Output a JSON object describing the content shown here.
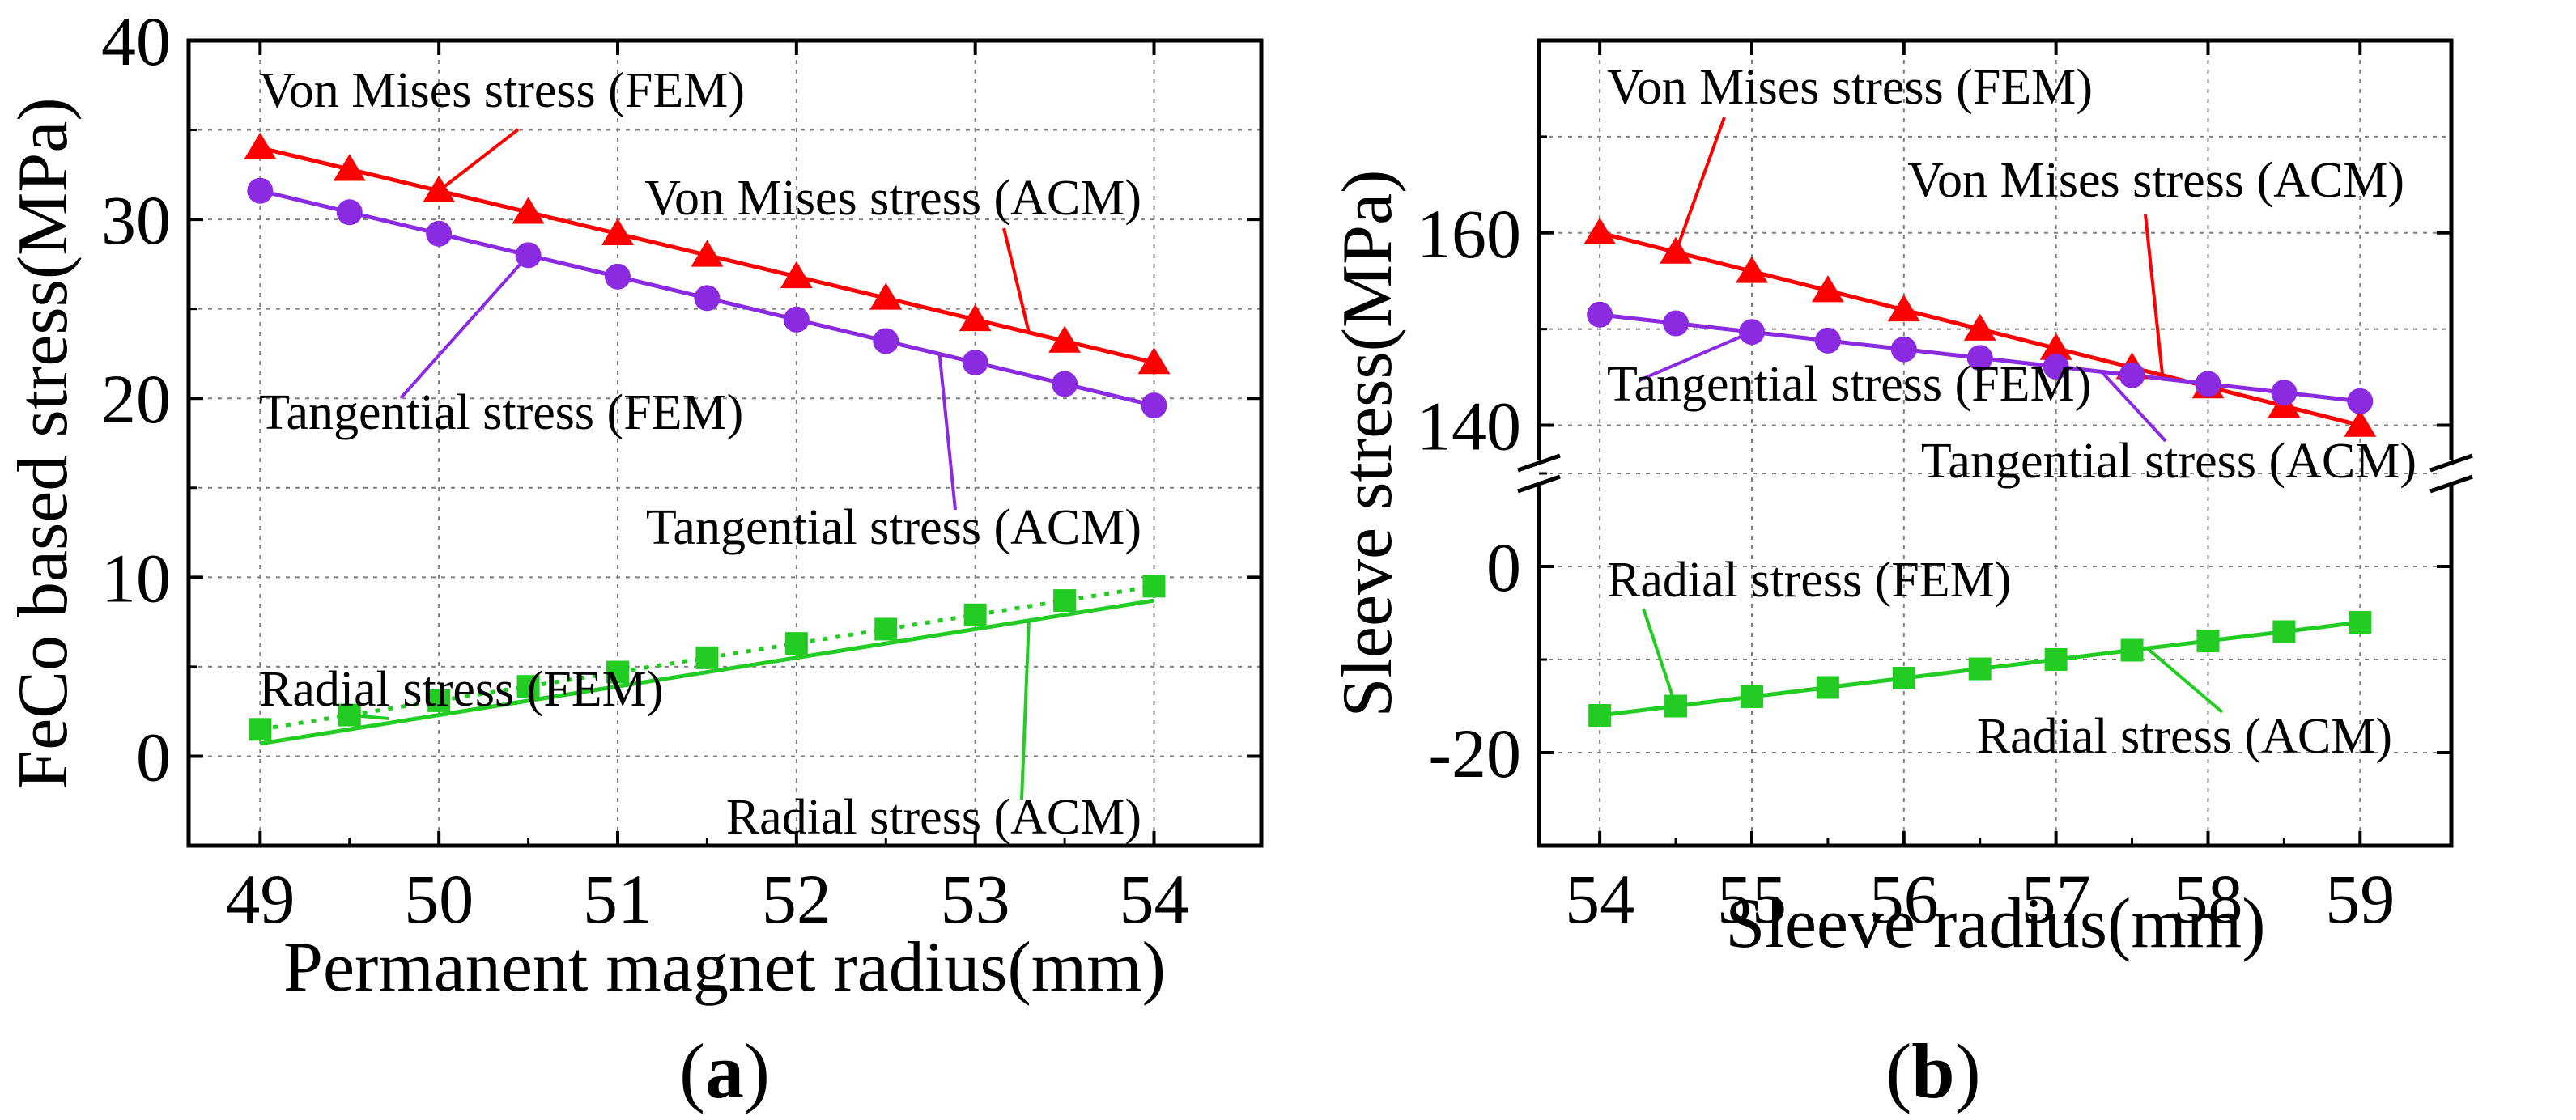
{
  "figure": {
    "caption_a": {
      "open": "(",
      "letter": "a",
      "close": ")"
    },
    "caption_b": {
      "open": "(",
      "letter": "b",
      "close": ")"
    }
  },
  "colors": {
    "von_mises": "#ff0000",
    "tangential": "#8a2be2",
    "radial": "#22cc22",
    "grid": "#7f7f7f",
    "axis": "#000000"
  },
  "chart_data": [
    {
      "type": "line",
      "id": "a",
      "title": "",
      "xlabel": "Permanent magnet radius(mm)",
      "ylabel": "FeCo based stress(MPa)",
      "xlim": [
        48.6,
        54.6
      ],
      "ylim": [
        -5,
        40
      ],
      "xticks": [
        49,
        50,
        51,
        52,
        53,
        54
      ],
      "yticks": [
        0,
        10,
        20,
        30,
        40
      ],
      "grid": true,
      "series": [
        {
          "name": "Von Mises stress (FEM)",
          "style": "marker",
          "marker": "triangle",
          "color": "#ff0000",
          "x": [
            49,
            49.5,
            50,
            50.5,
            51,
            51.5,
            52,
            52.5,
            53,
            53.5,
            54
          ],
          "y": [
            34.0,
            32.8,
            31.6,
            30.4,
            29.2,
            28.0,
            26.8,
            25.6,
            24.4,
            23.2,
            22.0
          ]
        },
        {
          "name": "Von Mises stress (ACM)",
          "style": "line",
          "color": "#ff0000",
          "x": [
            49,
            54
          ],
          "y": [
            34.0,
            22.0
          ]
        },
        {
          "name": "Tangential stress (FEM)",
          "style": "marker",
          "marker": "circle",
          "color": "#8a2be2",
          "x": [
            49,
            49.5,
            50,
            50.5,
            51,
            51.5,
            52,
            52.5,
            53,
            53.5,
            54
          ],
          "y": [
            31.6,
            30.4,
            29.2,
            28.0,
            26.8,
            25.6,
            24.4,
            23.2,
            22.0,
            20.8,
            19.6
          ]
        },
        {
          "name": "Tangential stress (ACM)",
          "style": "line",
          "color": "#8a2be2",
          "x": [
            49,
            54
          ],
          "y": [
            31.6,
            19.6
          ]
        },
        {
          "name": "Radial stress (FEM)",
          "style": "dotted-marker",
          "marker": "square",
          "color": "#22cc22",
          "x": [
            49,
            49.5,
            50,
            50.5,
            51,
            51.5,
            52,
            52.5,
            53,
            53.5,
            54
          ],
          "y": [
            1.5,
            2.3,
            3.1,
            3.9,
            4.7,
            5.5,
            6.3,
            7.1,
            7.9,
            8.7,
            9.5
          ]
        },
        {
          "name": "Radial stress (ACM)",
          "style": "line",
          "color": "#22cc22",
          "x": [
            49,
            54
          ],
          "y": [
            0.7,
            8.7
          ]
        }
      ],
      "annotations": [
        {
          "text": "Von Mises stress (FEM)",
          "series": 0,
          "point_index": 2
        },
        {
          "text": "Von Mises stress (ACM)",
          "series": 1,
          "point_x": 53.3
        },
        {
          "text": "Tangential stress (FEM)",
          "series": 2,
          "point_index": 3
        },
        {
          "text": "Tangential stress (ACM)",
          "series": 3,
          "point_x": 52.8
        },
        {
          "text": "Radial stress (FEM)",
          "series": 4,
          "point_index": 1
        },
        {
          "text": "Radial stress (ACM)",
          "series": 5,
          "point_x": 53.3
        }
      ]
    },
    {
      "type": "line",
      "id": "b",
      "title": "",
      "xlabel": "Sleeve radius(mm)",
      "ylabel": "Sleeve stress(MPa)",
      "xlim": [
        53.6,
        59.6
      ],
      "broken_y_axis": true,
      "ylim_lower": [
        -30,
        10
      ],
      "ylim_upper": [
        135,
        180
      ],
      "xticks": [
        54,
        55,
        56,
        57,
        58,
        59
      ],
      "yticks_lower": [
        -20,
        0
      ],
      "yticks_upper": [
        140,
        160
      ],
      "grid": true,
      "series": [
        {
          "name": "Von Mises stress (FEM)",
          "style": "marker",
          "marker": "triangle",
          "color": "#ff0000",
          "x": [
            54,
            54.5,
            55,
            55.5,
            56,
            56.5,
            57,
            57.5,
            58,
            58.5,
            59
          ],
          "y": [
            160,
            158,
            156,
            154,
            152,
            150,
            148,
            146,
            144,
            142,
            140
          ]
        },
        {
          "name": "Von Mises stress (ACM)",
          "style": "line",
          "color": "#ff0000",
          "x": [
            54,
            59
          ],
          "y": [
            160,
            140
          ]
        },
        {
          "name": "Tangential stress (FEM)",
          "style": "marker",
          "marker": "circle",
          "color": "#8a2be2",
          "x": [
            54,
            54.5,
            55,
            55.5,
            56,
            56.5,
            57,
            57.5,
            58,
            58.5,
            59
          ],
          "y": [
            151.5,
            150.6,
            149.7,
            148.8,
            147.9,
            147.0,
            146.1,
            145.2,
            144.3,
            143.4,
            142.5
          ]
        },
        {
          "name": "Tangential stress (ACM)",
          "style": "line",
          "color": "#8a2be2",
          "x": [
            54,
            59
          ],
          "y": [
            151.5,
            142.5
          ]
        },
        {
          "name": "Radial stress (FEM)",
          "style": "marker",
          "marker": "square",
          "color": "#22cc22",
          "x": [
            54,
            54.5,
            55,
            55.5,
            56,
            56.5,
            57,
            57.5,
            58,
            58.5,
            59
          ],
          "y": [
            -16,
            -15,
            -14,
            -13,
            -12,
            -11,
            -10,
            -9,
            -8,
            -7,
            -6
          ]
        },
        {
          "name": "Radial stress (ACM)",
          "style": "line",
          "color": "#22cc22",
          "x": [
            54,
            59
          ],
          "y": [
            -16,
            -6
          ]
        }
      ],
      "annotations": [
        {
          "text": "Von Mises stress (FEM)",
          "series": 0,
          "point_index": 1
        },
        {
          "text": "Von Mises stress (ACM)",
          "series": 1,
          "point_x": 57.7
        },
        {
          "text": "Tangential stress (FEM)",
          "series": 2,
          "point_index": 2
        },
        {
          "text": "Tangential stress (ACM)",
          "series": 3,
          "point_x": 57.3
        },
        {
          "text": "Radial stress (FEM)",
          "series": 4,
          "point_index": 1
        },
        {
          "text": "Radial stress (ACM)",
          "series": 5,
          "point_x": 57.6
        }
      ]
    }
  ]
}
